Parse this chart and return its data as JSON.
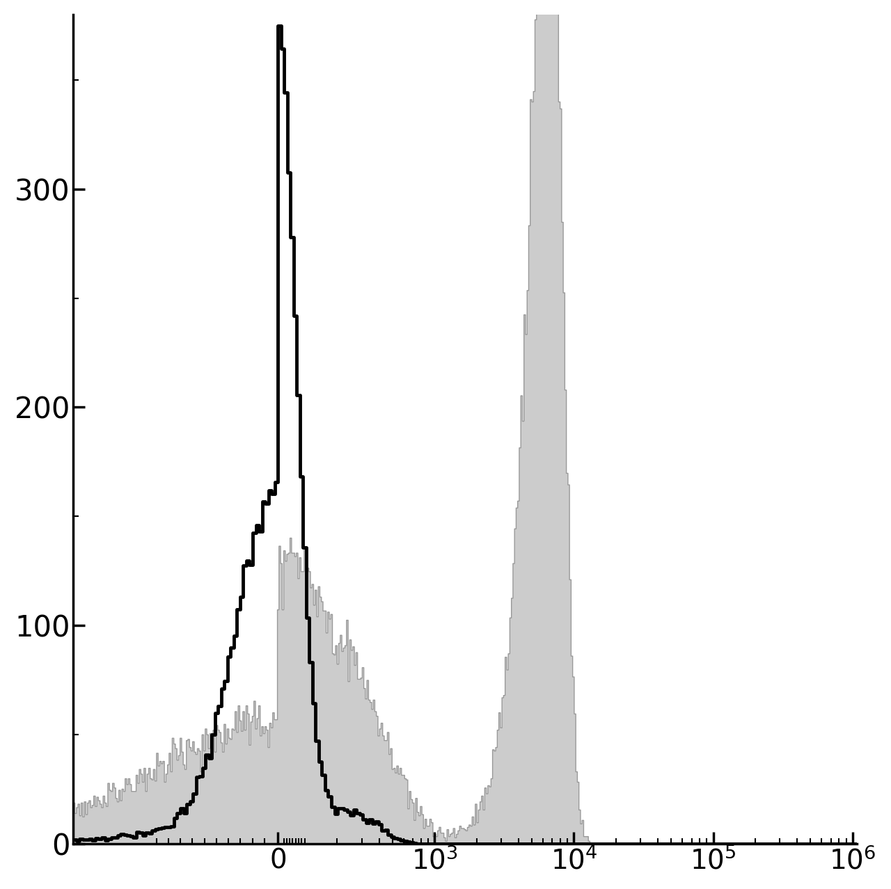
{
  "background_color": "#ffffff",
  "ylim": [
    0,
    380
  ],
  "yticks": [
    0,
    100,
    200,
    300
  ],
  "ytick_fontsize": 30,
  "xtick_fontsize": 28,
  "spine_linewidth": 2.5,
  "gray_fill_color": "#cccccc",
  "gray_edge_color": "#999999",
  "black_line_color": "#000000",
  "black_linewidth": 3.5,
  "gray_linewidth": 1.0,
  "xlim": [
    -0.8,
    8.2
  ],
  "tick_positions_data": [
    0,
    1000,
    10000,
    100000,
    1000000
  ],
  "tick_labels": [
    "0",
    "10^3",
    "10^4",
    "10^5",
    "10^6"
  ]
}
